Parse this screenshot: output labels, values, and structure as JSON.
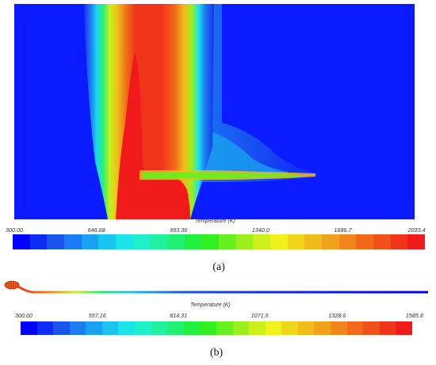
{
  "panel_a": {
    "colorbar_title": "Temperature (K)",
    "tick_labels": [
      "300.00",
      "646.68",
      "993.36",
      "1340.0",
      "1686.7",
      "2033.4"
    ],
    "caption": "(a)"
  },
  "panel_b": {
    "colorbar_title": "Temperature (K)",
    "tick_labels": [
      "300.00",
      "557.16",
      "814.31",
      "1071.5",
      "1328.6",
      "1585.8"
    ],
    "caption": "(b)"
  },
  "colormap": [
    "#0000ff",
    "#0f2cf2",
    "#1a55ee",
    "#1a7cf0",
    "#1aa0f0",
    "#1ac4f0",
    "#1ae4e8",
    "#1ef0cc",
    "#20f0a0",
    "#22f070",
    "#22f040",
    "#30f020",
    "#66f01e",
    "#99f01c",
    "#ccf01a",
    "#f0f01a",
    "#f0d61a",
    "#f0bc1a",
    "#f0a21a",
    "#f0861a",
    "#f06a1a",
    "#f0501a",
    "#f0341a",
    "#f01a1a"
  ]
}
